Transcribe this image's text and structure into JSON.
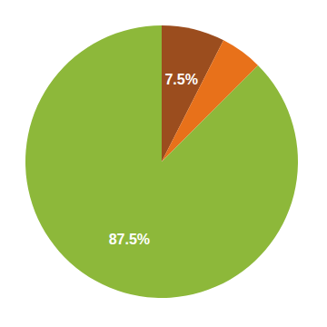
{
  "chart_data": {
    "type": "pie",
    "values": [
      7.5,
      5.0,
      87.5
    ],
    "colors": [
      "#9b4d1e",
      "#e8711a",
      "#8db83a"
    ],
    "value_labels": [
      "7.5%",
      null,
      "87.5%"
    ],
    "data_labels": true
  }
}
